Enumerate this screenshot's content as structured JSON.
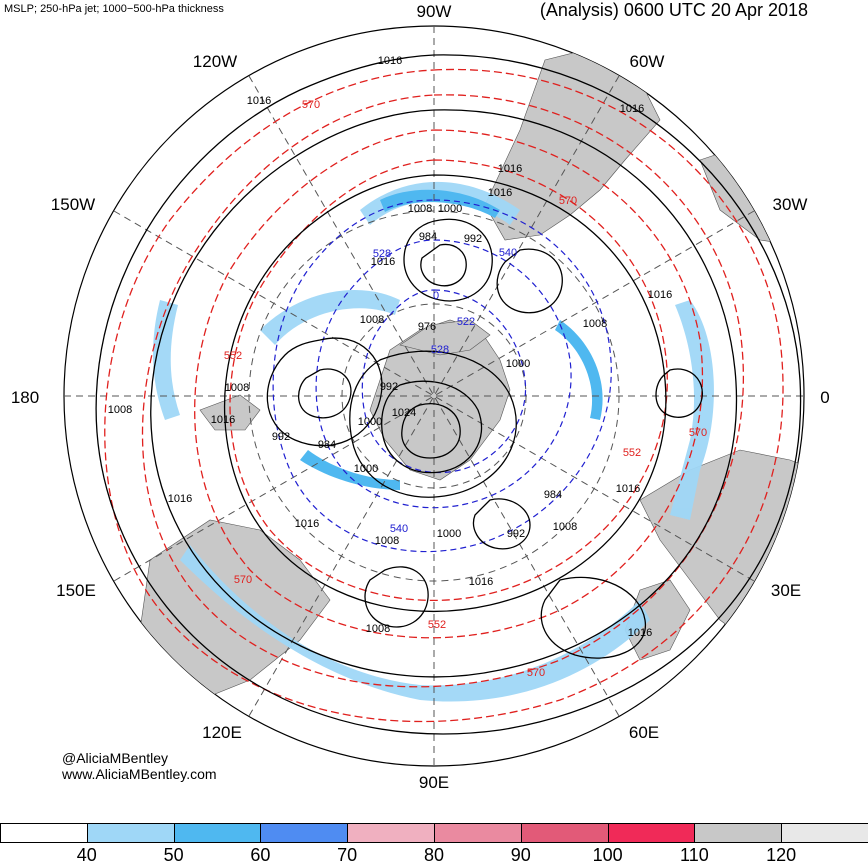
{
  "header": {
    "fields_title": "MSLP; 250-hPa jet; 1000−500-hPa thickness",
    "analysis_title": "(Analysis) 0600 UTC 20 Apr 2018"
  },
  "credit": {
    "handle": "@AliciaMBentley",
    "website": "www.AliciaMBentley.com"
  },
  "map": {
    "projection": "north-polar-stereographic",
    "longitude_labels": [
      "90W",
      "60W",
      "30W",
      "0",
      "30E",
      "60E",
      "90E",
      "120E",
      "150E",
      "180",
      "150W",
      "120W"
    ],
    "mslp_contour_labels": [
      "1016",
      "1016",
      "1016",
      "1016",
      "1016",
      "1016",
      "1016",
      "1016",
      "1016",
      "1016",
      "1016",
      "1016",
      "1016",
      "1008",
      "1008",
      "1008",
      "1008",
      "1008",
      "1008",
      "1008",
      "1008",
      "1000",
      "1000",
      "1000",
      "1000",
      "1000",
      "992",
      "992",
      "992",
      "992",
      "984",
      "984",
      "984",
      "976",
      "1024"
    ],
    "thickness_contour_labels_red": [
      "570",
      "570",
      "570",
      "570",
      "570",
      "552",
      "552",
      "552"
    ],
    "thickness_contour_labels_blue": [
      "540",
      "540",
      "528",
      "528",
      "522",
      "0"
    ],
    "colors": {
      "mslp": "#000000",
      "thickness_warm": "#e0201e",
      "thickness_cold": "#2020d0",
      "land": "#c8c8c8",
      "grid": "#555555"
    }
  },
  "colorbar": {
    "units_label": "",
    "colors": [
      "#ffffff",
      "#9fd7f7",
      "#4fb8f0",
      "#4f8cf2",
      "#f0b0c0",
      "#ea8aa0",
      "#e25a78",
      "#f02a58",
      "#c8c8c8",
      "#e8e8e8"
    ],
    "tick_labels": [
      "40",
      "50",
      "60",
      "70",
      "80",
      "90",
      "100",
      "110",
      "120"
    ]
  }
}
